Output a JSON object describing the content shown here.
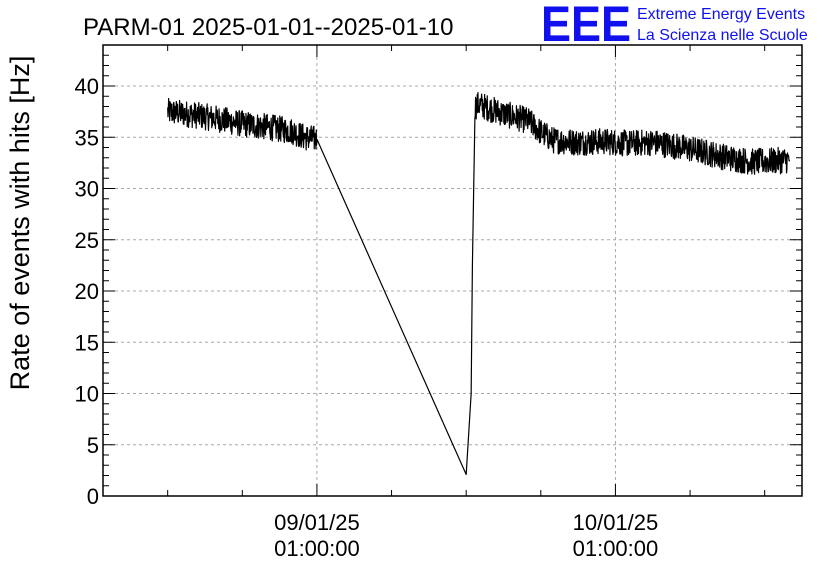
{
  "header": {
    "title": "PARM-01 2025-01-01--2025-01-10",
    "logo_text": "EEE",
    "logo_line1": "Extreme Energy Events",
    "logo_line2": "La Scienza nelle Scuole"
  },
  "colors": {
    "logo": "#1010ee",
    "series": "#000000",
    "grid": "#a8a8a8"
  },
  "chart_data": {
    "type": "line",
    "title": "PARM-01 2025-01-01--2025-01-10",
    "xlabel": "",
    "ylabel": "Rate of events with hits [Hz]",
    "x_unit": "days",
    "xlim": [
      "2025-01-08T07:48",
      "2025-01-10T16:00"
    ],
    "ylim": [
      0,
      44
    ],
    "yticks": [
      0,
      5,
      10,
      15,
      20,
      25,
      30,
      35,
      40
    ],
    "xticks": [
      {
        "x": "2025-01-09T01:00",
        "label_date": "09/01/25",
        "label_time": "01:00:00"
      },
      {
        "x": "2025-01-10T01:00",
        "label_date": "10/01/25",
        "label_time": "01:00:00"
      }
    ],
    "grid": true,
    "legend": "none",
    "series": [
      {
        "style": "noisy line",
        "x": [
          "2025-01-08T13:00",
          "2025-01-08T15:00",
          "2025-01-08T17:00",
          "2025-01-08T19:00",
          "2025-01-08T21:00",
          "2025-01-08T23:00",
          "2025-01-09T00:00",
          "2025-01-09T01:00",
          "2025-01-09T13:00",
          "2025-01-09T13:24",
          "2025-01-09T13:30",
          "2025-01-09T13:42",
          "2025-01-09T14:00",
          "2025-01-09T16:00",
          "2025-01-09T18:00",
          "2025-01-09T19:00",
          "2025-01-09T20:00",
          "2025-01-09T22:00",
          "2025-01-10T00:00",
          "2025-01-10T02:00",
          "2025-01-10T04:00",
          "2025-01-10T06:00",
          "2025-01-10T08:00",
          "2025-01-10T10:00",
          "2025-01-10T12:00",
          "2025-01-10T14:00",
          "2025-01-10T15:00"
        ],
        "y": [
          37.5,
          37.2,
          36.8,
          36.3,
          36.0,
          35.6,
          35.0,
          34.8,
          2.1,
          10.0,
          22.5,
          38.0,
          38.2,
          37.3,
          36.6,
          35.5,
          34.7,
          34.5,
          34.6,
          34.4,
          34.5,
          34.1,
          33.6,
          33.0,
          32.6,
          32.7,
          32.8
        ]
      }
    ]
  }
}
